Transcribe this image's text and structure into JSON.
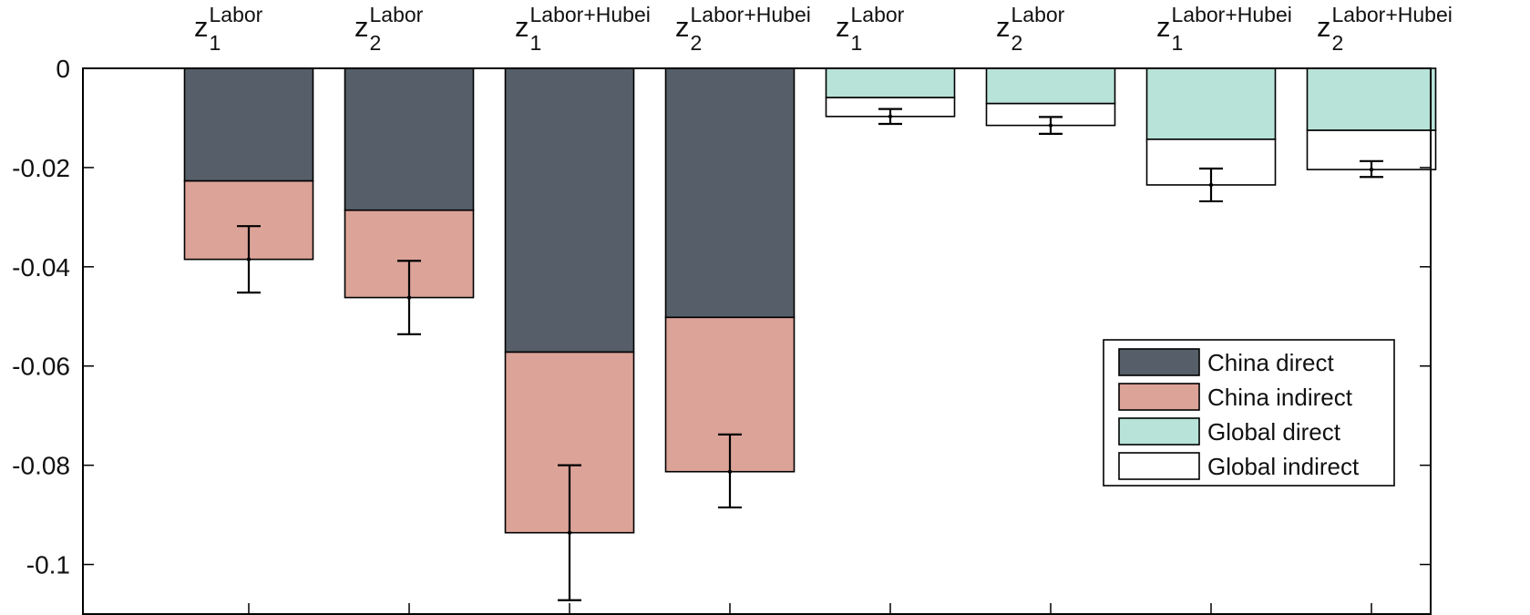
{
  "chart_data": {
    "type": "bar",
    "stacked": true,
    "title": "",
    "xlabel": "",
    "ylabel": "",
    "ylim": [
      -0.11,
      0
    ],
    "yticks": [
      0,
      -0.02,
      -0.04,
      -0.06,
      -0.08,
      -0.1
    ],
    "ytick_labels": [
      "0",
      "-0.02",
      "-0.04",
      "-0.06",
      "-0.08",
      "-0.1"
    ],
    "grid": false,
    "legend_position": "right",
    "categories": [
      {
        "base": "z",
        "sub": "1",
        "sup": "Labor"
      },
      {
        "base": "z",
        "sub": "2",
        "sup": "Labor"
      },
      {
        "base": "z",
        "sub": "1",
        "sup": "Labor+Hubei"
      },
      {
        "base": "z",
        "sub": "2",
        "sup": "Labor+Hubei"
      },
      {
        "base": "z",
        "sub": "1",
        "sup": "Labor"
      },
      {
        "base": "z",
        "sub": "2",
        "sup": "Labor"
      },
      {
        "base": "z",
        "sub": "1",
        "sup": "Labor+Hubei"
      },
      {
        "base": "z",
        "sub": "2",
        "sup": "Labor+Hubei"
      }
    ],
    "series": [
      {
        "name": "China direct",
        "color": "#565f69",
        "values": [
          -0.0227,
          -0.0286,
          -0.0572,
          -0.0502,
          null,
          null,
          null,
          null
        ]
      },
      {
        "name": "China indirect",
        "color": "#dca398",
        "values": [
          -0.0158,
          -0.0176,
          -0.0364,
          -0.0311,
          null,
          null,
          null,
          null
        ]
      },
      {
        "name": "Global direct",
        "color": "#b7e3d8",
        "values": [
          null,
          null,
          null,
          null,
          -0.0059,
          -0.0071,
          -0.0143,
          -0.0125
        ]
      },
      {
        "name": "Global indirect",
        "color": "#ffffff",
        "values": [
          null,
          null,
          null,
          null,
          -0.0038,
          -0.0044,
          -0.0092,
          -0.0079
        ]
      }
    ],
    "error_bars": [
      {
        "center": -0.0385,
        "low": -0.0452,
        "high": -0.0318
      },
      {
        "center": -0.0462,
        "low": -0.0536,
        "high": -0.0388
      },
      {
        "center": -0.0936,
        "low": -0.1072,
        "high": -0.08
      },
      {
        "center": -0.0813,
        "low": -0.0885,
        "high": -0.0738
      },
      {
        "center": -0.0097,
        "low": -0.0112,
        "high": -0.0082
      },
      {
        "center": -0.0115,
        "low": -0.0132,
        "high": -0.0098
      },
      {
        "center": -0.0235,
        "low": -0.0268,
        "high": -0.0202
      },
      {
        "center": -0.0204,
        "low": -0.0219,
        "high": -0.0187
      }
    ]
  }
}
